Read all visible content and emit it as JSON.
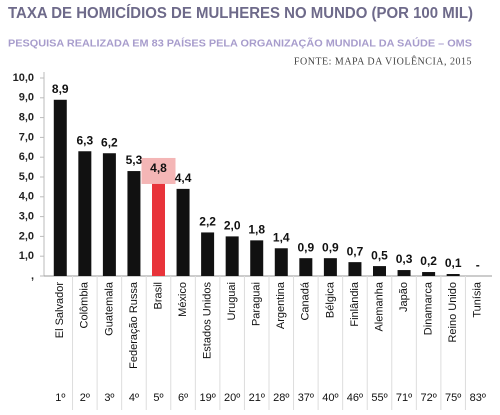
{
  "chart_data": {
    "type": "bar",
    "title": "TAXA DE HOMICÍDIOS DE MULHERES NO MUNDO (POR 100 MIL)",
    "subtitle": "PESQUISA REALIZADA EM 83 PAÍSES PELA ORGANIZAÇÃO MUNDIAL DA SAÚDE – OMS",
    "source": "FONTE: MAPA DA VIOLÊNCIA, 2015",
    "categories": [
      "El Salvador",
      "Colômbia",
      "Guatemala",
      "Federação Russa",
      "Brasil",
      "México",
      "Estados Unidos",
      "Uruguai",
      "Paraguai",
      "Argentina",
      "Canadá",
      "Bélgica",
      "Finlândia",
      "Alemanha",
      "Japão",
      "Dinamarca",
      "Reino Unido",
      "Tunísia"
    ],
    "values": [
      8.9,
      6.3,
      6.2,
      5.3,
      4.8,
      4.4,
      2.2,
      2.0,
      1.8,
      1.4,
      0.9,
      0.9,
      0.7,
      0.5,
      0.3,
      0.2,
      0.1,
      null
    ],
    "value_labels": [
      "8,9",
      "6,3",
      "6,2",
      "5,3",
      "4,8",
      "4,4",
      "2,2",
      "2,0",
      "1,8",
      "1,4",
      "0,9",
      "0,9",
      "0,7",
      "0,5",
      "0,3",
      "0,2",
      "0,1",
      "-"
    ],
    "ranks": [
      "1º",
      "2º",
      "3º",
      "4º",
      "5º",
      "6º",
      "19º",
      "20º",
      "21º",
      "28º",
      "37º",
      "40º",
      "46º",
      "55º",
      "71º",
      "72º",
      "75º",
      "83º"
    ],
    "colors": [
      "#111111",
      "#111111",
      "#111111",
      "#111111",
      "#e8333a",
      "#111111",
      "#111111",
      "#111111",
      "#111111",
      "#111111",
      "#111111",
      "#111111",
      "#111111",
      "#111111",
      "#111111",
      "#111111",
      "#111111",
      "#111111"
    ],
    "ylim": [
      0,
      10
    ],
    "yticks": [
      {
        "value": 0,
        "label": ","
      },
      {
        "value": 1,
        "label": "1,0"
      },
      {
        "value": 2,
        "label": "2,0"
      },
      {
        "value": 3,
        "label": "3,0"
      },
      {
        "value": 4,
        "label": "4,0"
      },
      {
        "value": 5,
        "label": "5,0"
      },
      {
        "value": 6,
        "label": "6,0"
      },
      {
        "value": 7,
        "label": "7,0"
      },
      {
        "value": 8,
        "label": "8,0"
      },
      {
        "value": 9,
        "label": "9,0"
      },
      {
        "value": 10,
        "label": "10,0"
      }
    ]
  }
}
